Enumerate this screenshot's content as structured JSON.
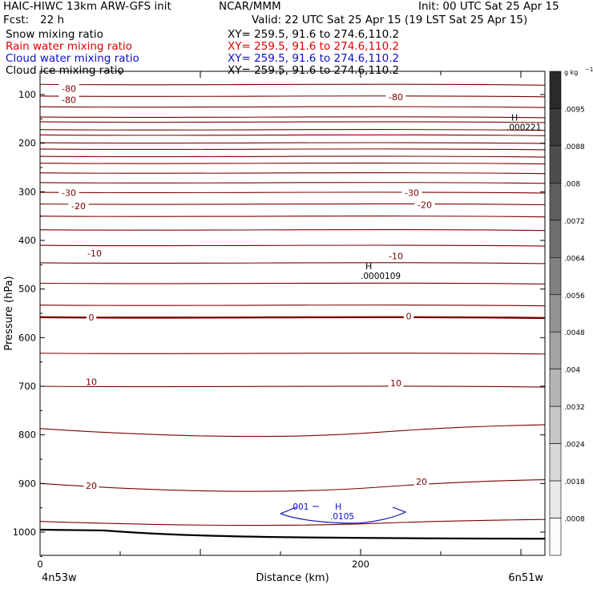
{
  "header": {
    "title": "HAIC-HIWC 13km ARW-GFS init",
    "org": "NCAR/MMM",
    "init": "Init: 00 UTC Sat 25 Apr 15",
    "fcst_label": "Fcst:",
    "fcst_value": "22 h",
    "valid": "Valid: 22 UTC Sat 25 Apr 15 (19 LST Sat 25 Apr 15)"
  },
  "fields": [
    {
      "name": "Snow mixing ratio",
      "xy": "XY= 259.5, 91.6 to 274.6,110.2",
      "color": "#000000"
    },
    {
      "name": "Rain water mixing ratio",
      "xy": "XY= 259.5, 91.6 to 274.6,110.2",
      "color": "#e00000"
    },
    {
      "name": "Cloud water mixing ratio",
      "xy": "XY= 259.5, 91.6 to 274.6,110.2",
      "color": "#1010c0"
    },
    {
      "name": "Cloud ice mixing ratio",
      "xy": "XY= 259.5, 91.6 to 274.6,110.2",
      "color": "#000000"
    }
  ],
  "chart_data": {
    "type": "cross-section contour",
    "xlabel": "Distance (km)",
    "ylabel": "Pressure (hPa)",
    "x_range": [
      0,
      315
    ],
    "y_range": [
      1050,
      50
    ],
    "x_ticks": [
      0,
      200
    ],
    "y_ticks": [
      100,
      200,
      300,
      400,
      500,
      600,
      700,
      800,
      900,
      1000
    ],
    "left_endpoint": "4n53w",
    "right_endpoint": "6n51w",
    "temperature_color": "#7a0000",
    "temperature_contours": [
      {
        "p": 79
      },
      {
        "p": 103
      },
      {
        "p": 125
      },
      {
        "p": 146
      },
      {
        "p": 156
      },
      {
        "p": 172
      },
      {
        "p": 183
      },
      {
        "p": 199
      },
      {
        "p": 212
      },
      {
        "p": 227
      },
      {
        "p": 241
      },
      {
        "p": 261
      },
      {
        "p": 281
      },
      {
        "p": 301
      },
      {
        "p": 325
      },
      {
        "p": 350
      },
      {
        "p": 378
      },
      {
        "p": 410
      },
      {
        "p": 446
      },
      {
        "p": 488
      },
      {
        "p": 533
      },
      {
        "p": 558
      },
      {
        "p": 632
      },
      {
        "p": 700
      },
      {
        "p": 787
      },
      {
        "p": 900
      },
      {
        "p": 978
      }
    ],
    "temperature_labels": [
      {
        "text": "-80",
        "x": 18,
        "p": 88
      },
      {
        "text": "-80",
        "x": 18,
        "p": 111
      },
      {
        "text": "-80",
        "x": 222,
        "p": 105
      },
      {
        "text": "-30",
        "x": 18,
        "p": 302
      },
      {
        "text": "-30",
        "x": 232,
        "p": 302
      },
      {
        "text": "-20",
        "x": 24,
        "p": 329
      },
      {
        "text": "-20",
        "x": 240,
        "p": 327
      },
      {
        "text": "-10",
        "x": 34,
        "p": 426
      },
      {
        "text": "-10",
        "x": 222,
        "p": 432
      },
      {
        "text": "0",
        "x": 32,
        "p": 558
      },
      {
        "text": "0",
        "x": 230,
        "p": 556
      },
      {
        "text": "10",
        "x": 32,
        "p": 691
      },
      {
        "text": "10",
        "x": 222,
        "p": 693
      },
      {
        "text": "20",
        "x": 32,
        "p": 904
      },
      {
        "text": "20",
        "x": 238,
        "p": 896
      }
    ],
    "cloud_water_contour": {
      "label": ".001",
      "color": "#1010c0"
    },
    "highs": [
      {
        "symbol": "H",
        "value": ".000221",
        "x": 294,
        "p": 157,
        "color": "#000000"
      },
      {
        "symbol": "H",
        "value": ".0000109",
        "x": 203,
        "p": 463,
        "color": "#000000"
      },
      {
        "symbol": "H",
        "value": ".0105",
        "x": 184,
        "p": 957,
        "color": "#1010c0"
      }
    ],
    "colorbar": {
      "unit": "g kg",
      "unit_superscript": "−1",
      "labels": [
        ".0095",
        ".0088",
        ".008",
        ".0072",
        ".0064",
        ".0056",
        ".0048",
        ".004",
        ".0032",
        ".0024",
        ".0018",
        ".0008"
      ],
      "top_color": "#2a2a2a",
      "bottom_color": "#fafafa"
    }
  }
}
